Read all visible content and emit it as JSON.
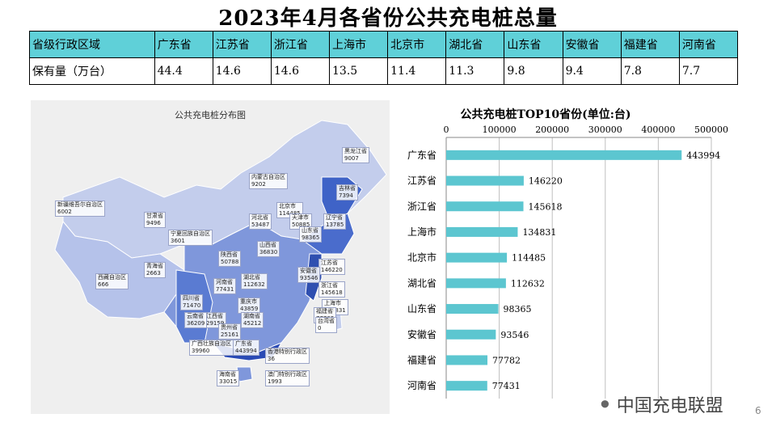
{
  "title": "2023年4月各省份公共充电桩总量",
  "table": {
    "header_label": "省级行政区域",
    "row_label": "保有量（万台）",
    "provinces": [
      "广东省",
      "江苏省",
      "浙江省",
      "上海市",
      "北京市",
      "湖北省",
      "山东省",
      "安徽省",
      "福建省",
      "河南省"
    ],
    "values": [
      "44.4",
      "14.6",
      "14.6",
      "13.5",
      "11.4",
      "11.3",
      "9.8",
      "9.4",
      "7.8",
      "7.7"
    ]
  },
  "map": {
    "title": "公共充电桩分布图",
    "labels": [
      {
        "name": "黑龙江省",
        "value": "9007"
      },
      {
        "name": "吉林省",
        "value": "7394"
      },
      {
        "name": "辽宁省",
        "value": "13785"
      },
      {
        "name": "内蒙古自治区",
        "value": "9202"
      },
      {
        "name": "北京市",
        "value": "114485"
      },
      {
        "name": "天津市",
        "value": "50885"
      },
      {
        "name": "河北省",
        "value": "53487"
      },
      {
        "name": "山西省",
        "value": "36830"
      },
      {
        "name": "山东省",
        "value": "98365"
      },
      {
        "name": "新疆维吾尔自治区",
        "value": "6002"
      },
      {
        "name": "甘肃省",
        "value": "9496"
      },
      {
        "name": "宁夏回族自治区",
        "value": "3601"
      },
      {
        "name": "陕西省",
        "value": "50788"
      },
      {
        "name": "江苏省",
        "value": "146220"
      },
      {
        "name": "安徽省",
        "value": "93546"
      },
      {
        "name": "青海省",
        "value": "2663"
      },
      {
        "name": "河南省",
        "value": "77431"
      },
      {
        "name": "湖北省",
        "value": "112632"
      },
      {
        "name": "西藏自治区",
        "value": "666"
      },
      {
        "name": "浙江省",
        "value": "145618"
      },
      {
        "name": "上海市",
        "value": "134831"
      },
      {
        "name": "四川省",
        "value": "71470"
      },
      {
        "name": "江西省",
        "value": "29159"
      },
      {
        "name": "重庆市",
        "value": "43859"
      },
      {
        "name": "湖南省",
        "value": "45212"
      },
      {
        "name": "福建省",
        "value": "77782"
      },
      {
        "name": "云南省",
        "value": "36209"
      },
      {
        "name": "贵州省",
        "value": "25161"
      },
      {
        "name": "台湾省",
        "value": "0"
      },
      {
        "name": "广西壮族自治区",
        "value": "39960"
      },
      {
        "name": "广东省",
        "value": "443994"
      },
      {
        "name": "香港特别行政区",
        "value": "36"
      },
      {
        "name": "海南省",
        "value": "33015"
      },
      {
        "name": "澳门特别行政区",
        "value": "1993"
      }
    ]
  },
  "chart_data": {
    "type": "bar",
    "orientation": "horizontal",
    "title": "公共充电桩TOP10省份(单位:台)",
    "categories": [
      "广东省",
      "江苏省",
      "浙江省",
      "上海市",
      "北京市",
      "湖北省",
      "山东省",
      "安徽省",
      "福建省",
      "河南省"
    ],
    "values": [
      443994,
      146220,
      145618,
      134831,
      114485,
      112632,
      98365,
      93546,
      77782,
      77431
    ],
    "x_ticks": [
      0,
      100000,
      200000,
      300000,
      400000,
      500000
    ],
    "xlim": [
      0,
      500000
    ],
    "axis_position": "top",
    "grid": true,
    "bar_color": "#5cc6d0"
  },
  "watermark": "中国充电联盟",
  "page_number": "6"
}
